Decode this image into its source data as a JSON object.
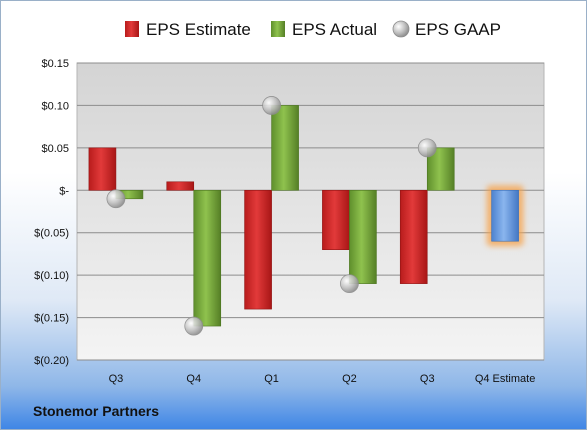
{
  "company": "Stonemor Partners",
  "legend": [
    {
      "label": "EPS Estimate",
      "color": "#d42a2a",
      "icon": "red-bar-icon"
    },
    {
      "label": "EPS Actual",
      "color": "#7fb040",
      "icon": "green-bar-icon"
    },
    {
      "label": "EPS GAAP",
      "color": "#b8b8b8",
      "icon": "gray-sphere-icon"
    }
  ],
  "chart_data": {
    "type": "bar",
    "categories": [
      "Q3",
      "Q4",
      "Q1",
      "Q2",
      "Q3",
      "Q4 Estimate"
    ],
    "series": [
      {
        "name": "EPS Estimate",
        "values": [
          0.05,
          0.01,
          -0.14,
          -0.07,
          -0.11,
          -0.06
        ]
      },
      {
        "name": "EPS Actual",
        "values": [
          -0.01,
          -0.16,
          0.1,
          -0.11,
          0.05,
          null
        ]
      },
      {
        "name": "EPS GAAP",
        "values": [
          -0.01,
          -0.16,
          0.1,
          -0.11,
          0.05,
          null
        ]
      }
    ],
    "ylim": [
      -0.2,
      0.15
    ],
    "yticks": [
      0.15,
      0.1,
      0.05,
      0,
      -0.05,
      -0.1,
      -0.15,
      -0.2
    ],
    "ytick_labels": [
      "$0.15",
      "$0.10",
      "$0.05",
      "$-",
      "$(0.05)",
      "$(0.10)",
      "$(0.15)",
      "$(0.20)"
    ],
    "highlighted_category": "Q4 Estimate",
    "highlight_color": "#6fa0e0",
    "grid": true,
    "legend_position": "top"
  }
}
